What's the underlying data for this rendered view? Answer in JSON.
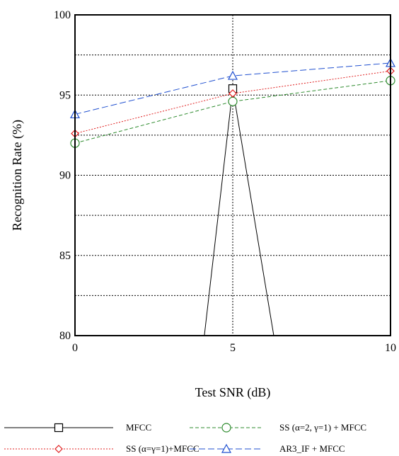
{
  "chart_data": {
    "type": "line",
    "xlabel": "Test  SNR (dB)",
    "ylabel": "Recognition  Rate  (%)",
    "xlim": [
      0,
      10
    ],
    "ylim": [
      80,
      100
    ],
    "xticks": [
      0,
      5,
      10
    ],
    "yticks": [
      80,
      85,
      90,
      95,
      100
    ],
    "grid": true,
    "series": [
      {
        "name": "MFCC",
        "x": [
          4.1,
          5,
          6.3
        ],
        "y": [
          80,
          95.4,
          80
        ],
        "color": "#000000",
        "dash": "solid",
        "marker": "square",
        "marker_shown_at_x": [
          5
        ]
      },
      {
        "name": "SS (α=2, γ=1) + MFCC",
        "x": [
          0,
          5,
          10
        ],
        "y": [
          92.0,
          94.6,
          95.9
        ],
        "color": "#2e8b2e",
        "dash": "dashed",
        "marker": "circle"
      },
      {
        "name": "SS (α=γ=1)+MFCC",
        "x": [
          0,
          5,
          10
        ],
        "y": [
          92.6,
          95.1,
          96.5
        ],
        "color": "#e02020",
        "dash": "dotted",
        "marker": "diamond"
      },
      {
        "name": "AR3_IF + MFCC",
        "x": [
          0,
          5,
          10
        ],
        "y": [
          93.8,
          96.2,
          97.0
        ],
        "color": "#2050d0",
        "dash": "longdash",
        "marker": "triangle"
      }
    ],
    "legend": {
      "placement": "bottom",
      "columns": 2,
      "order": [
        0,
        1,
        2,
        3
      ]
    }
  }
}
